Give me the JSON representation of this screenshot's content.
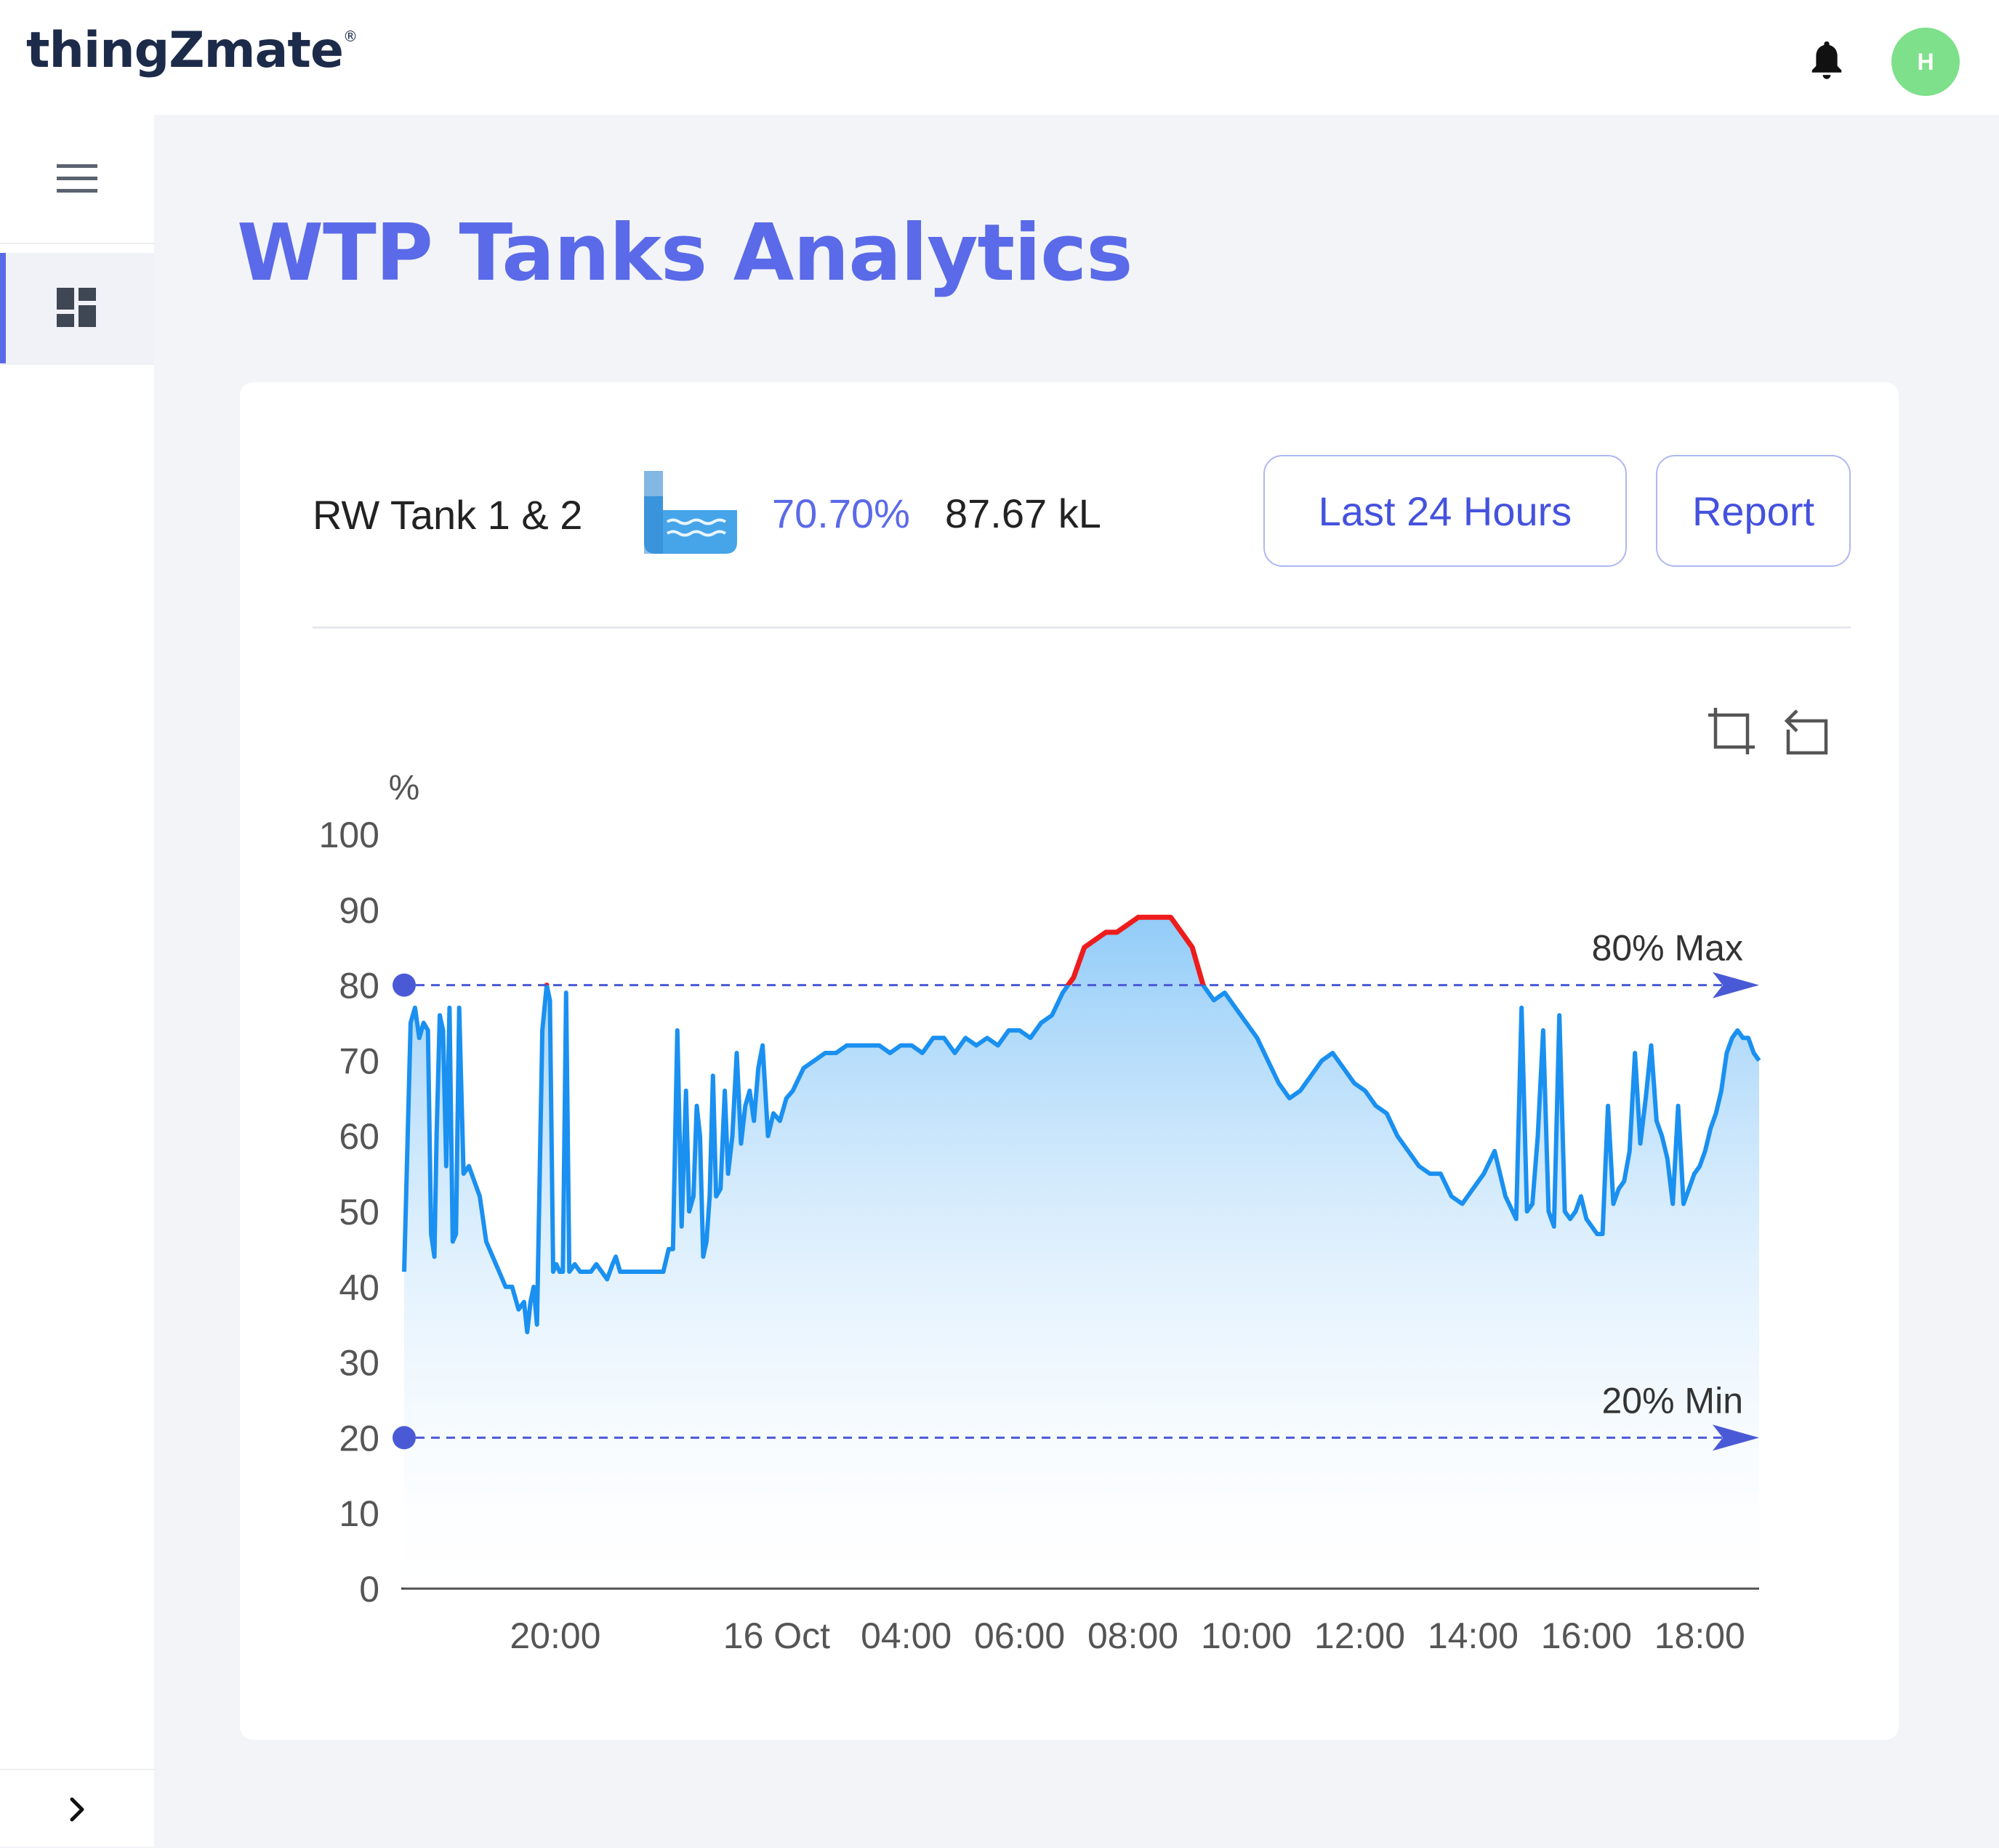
{
  "header": {
    "logo_text": "thingZmate",
    "logo_mark": "®",
    "avatar_initial": "H"
  },
  "page": {
    "title": "WTP Tanks Analytics"
  },
  "tank": {
    "name": "RW Tank 1 & 2",
    "percent": "70.70%",
    "volume": "87.67 kL",
    "level_fraction": 0.707
  },
  "controls": {
    "range_label": "Last 24 Hours",
    "report_label": "Report"
  },
  "colors": {
    "accent": "#5a6ae8",
    "series": "#1a90f0",
    "over_max": "#ee1c1c",
    "threshold": "#4a5ad6",
    "avatar": "#7ee08a"
  },
  "icons": {
    "menu": "hamburger-menu-icon",
    "dashboard": "dashboard-icon",
    "bell": "bell-icon",
    "zoom": "zoom-area-icon",
    "reset": "zoom-reset-icon",
    "collapse": "chevron-right-icon"
  },
  "chart_data": {
    "type": "area",
    "y_unit": "%",
    "ylim": [
      0,
      100
    ],
    "yticks": [
      0,
      10,
      20,
      30,
      40,
      50,
      60,
      70,
      80,
      90,
      100
    ],
    "xticks": [
      "20:00",
      "16 Oct",
      "04:00",
      "06:00",
      "08:00",
      "10:00",
      "12:00",
      "14:00",
      "16:00",
      "18:00"
    ],
    "thresholds": [
      {
        "label": "80% Max",
        "value": 80
      },
      {
        "label": "20% Min",
        "value": 20
      }
    ],
    "points": [
      [
        0.0,
        42
      ],
      [
        0.6,
        75
      ],
      [
        1.0,
        77
      ],
      [
        1.4,
        73
      ],
      [
        1.8,
        75
      ],
      [
        2.2,
        74
      ],
      [
        2.5,
        47
      ],
      [
        2.8,
        44
      ],
      [
        3.0,
        60
      ],
      [
        3.3,
        76
      ],
      [
        3.6,
        74
      ],
      [
        3.9,
        56
      ],
      [
        4.2,
        77
      ],
      [
        4.5,
        46
      ],
      [
        4.8,
        47
      ],
      [
        5.1,
        77
      ],
      [
        5.5,
        55
      ],
      [
        6.0,
        56
      ],
      [
        6.5,
        54
      ],
      [
        7.0,
        52
      ],
      [
        7.6,
        46
      ],
      [
        8.2,
        44
      ],
      [
        8.8,
        42
      ],
      [
        9.4,
        40
      ],
      [
        10.0,
        40
      ],
      [
        10.6,
        37
      ],
      [
        11.1,
        38
      ],
      [
        11.4,
        34
      ],
      [
        11.7,
        38
      ],
      [
        12.0,
        40
      ],
      [
        12.3,
        35
      ],
      [
        12.8,
        74
      ],
      [
        13.2,
        80
      ],
      [
        13.5,
        78
      ],
      [
        13.8,
        42
      ],
      [
        14.1,
        43
      ],
      [
        14.4,
        42
      ],
      [
        14.7,
        42
      ],
      [
        15.0,
        79
      ],
      [
        15.3,
        42
      ],
      [
        15.8,
        43
      ],
      [
        16.3,
        42
      ],
      [
        16.8,
        42
      ],
      [
        17.3,
        42
      ],
      [
        17.8,
        43
      ],
      [
        18.3,
        42
      ],
      [
        18.8,
        41
      ],
      [
        19.3,
        43
      ],
      [
        19.6,
        44
      ],
      [
        20.0,
        42
      ],
      [
        20.5,
        42
      ],
      [
        21.0,
        42
      ],
      [
        21.5,
        42
      ],
      [
        22.0,
        42
      ],
      [
        22.5,
        42
      ],
      [
        23.0,
        42
      ],
      [
        23.5,
        42
      ],
      [
        24.0,
        42
      ],
      [
        24.5,
        45
      ],
      [
        24.9,
        45
      ],
      [
        25.3,
        74
      ],
      [
        25.7,
        48
      ],
      [
        26.1,
        66
      ],
      [
        26.4,
        50
      ],
      [
        26.8,
        52
      ],
      [
        27.1,
        64
      ],
      [
        27.4,
        60
      ],
      [
        27.7,
        44
      ],
      [
        28.0,
        46
      ],
      [
        28.3,
        52
      ],
      [
        28.6,
        68
      ],
      [
        28.9,
        52
      ],
      [
        29.3,
        53
      ],
      [
        29.7,
        66
      ],
      [
        30.0,
        55
      ],
      [
        30.4,
        60
      ],
      [
        30.8,
        71
      ],
      [
        31.2,
        59
      ],
      [
        31.6,
        64
      ],
      [
        32.0,
        66
      ],
      [
        32.4,
        62
      ],
      [
        32.8,
        69
      ],
      [
        33.2,
        72
      ],
      [
        33.7,
        60
      ],
      [
        34.2,
        63
      ],
      [
        34.8,
        62
      ],
      [
        35.4,
        65
      ],
      [
        36.0,
        66
      ],
      [
        37.0,
        69
      ],
      [
        38.0,
        70
      ],
      [
        39.0,
        71
      ],
      [
        40.0,
        71
      ],
      [
        41.0,
        72
      ],
      [
        42.0,
        72
      ],
      [
        43.0,
        72
      ],
      [
        44.0,
        72
      ],
      [
        45.0,
        71
      ],
      [
        46.0,
        72
      ],
      [
        47.0,
        72
      ],
      [
        48.0,
        71
      ],
      [
        49.0,
        73
      ],
      [
        50.0,
        73
      ],
      [
        51.0,
        71
      ],
      [
        52.0,
        73
      ],
      [
        53.0,
        72
      ],
      [
        54.0,
        73
      ],
      [
        55.0,
        72
      ],
      [
        56.0,
        74
      ],
      [
        57.0,
        74
      ],
      [
        58.0,
        73
      ],
      [
        59.0,
        75
      ],
      [
        60.0,
        76
      ],
      [
        61.0,
        79
      ],
      [
        62.0,
        81
      ],
      [
        63.0,
        85
      ],
      [
        64.0,
        86
      ],
      [
        65.0,
        87
      ],
      [
        66.0,
        87
      ],
      [
        67.0,
        88
      ],
      [
        68.0,
        89
      ],
      [
        69.0,
        89
      ],
      [
        70.0,
        89
      ],
      [
        71.0,
        89
      ],
      [
        72.0,
        87
      ],
      [
        73.0,
        85
      ],
      [
        74.0,
        80
      ],
      [
        75.0,
        78
      ],
      [
        76.0,
        79
      ],
      [
        77.0,
        77
      ],
      [
        78.0,
        75
      ],
      [
        79.0,
        73
      ],
      [
        80.0,
        70
      ],
      [
        81.0,
        67
      ],
      [
        82.0,
        65
      ],
      [
        83.0,
        66
      ],
      [
        84.0,
        68
      ],
      [
        85.0,
        70
      ],
      [
        86.0,
        71
      ],
      [
        87.0,
        69
      ],
      [
        88.0,
        67
      ],
      [
        89.0,
        66
      ],
      [
        90.0,
        64
      ],
      [
        91.0,
        63
      ],
      [
        92.0,
        60
      ],
      [
        93.0,
        58
      ],
      [
        94.0,
        56
      ],
      [
        95.0,
        55
      ],
      [
        96.0,
        55
      ],
      [
        97.0,
        52
      ],
      [
        98.0,
        51
      ],
      [
        99.0,
        53
      ],
      [
        100.0,
        55
      ],
      [
        101.0,
        58
      ],
      [
        102.0,
        52
      ],
      [
        103.0,
        49
      ],
      [
        103.5,
        77
      ],
      [
        104.0,
        50
      ],
      [
        104.5,
        51
      ],
      [
        105.0,
        60
      ],
      [
        105.5,
        74
      ],
      [
        106.0,
        50
      ],
      [
        106.5,
        48
      ],
      [
        107.0,
        76
      ],
      [
        107.5,
        50
      ],
      [
        108.0,
        49
      ],
      [
        108.5,
        50
      ],
      [
        109.0,
        52
      ],
      [
        109.5,
        49
      ],
      [
        110.0,
        48
      ],
      [
        110.5,
        47
      ],
      [
        111.0,
        47
      ],
      [
        111.5,
        64
      ],
      [
        112.0,
        51
      ],
      [
        112.5,
        53
      ],
      [
        113.0,
        54
      ],
      [
        113.5,
        58
      ],
      [
        114.0,
        71
      ],
      [
        114.5,
        59
      ],
      [
        115.0,
        65
      ],
      [
        115.5,
        72
      ],
      [
        116.0,
        62
      ],
      [
        116.5,
        60
      ],
      [
        117.0,
        57
      ],
      [
        117.5,
        51
      ],
      [
        118.0,
        64
      ],
      [
        118.5,
        51
      ],
      [
        119.0,
        53
      ],
      [
        119.5,
        55
      ],
      [
        120.0,
        56
      ],
      [
        120.5,
        58
      ],
      [
        121.0,
        61
      ],
      [
        121.5,
        63
      ],
      [
        122.0,
        66
      ],
      [
        122.5,
        71
      ],
      [
        123.0,
        73
      ],
      [
        123.5,
        74
      ],
      [
        124.0,
        73
      ],
      [
        124.5,
        73
      ],
      [
        125.0,
        71
      ],
      [
        125.5,
        70
      ]
    ]
  }
}
